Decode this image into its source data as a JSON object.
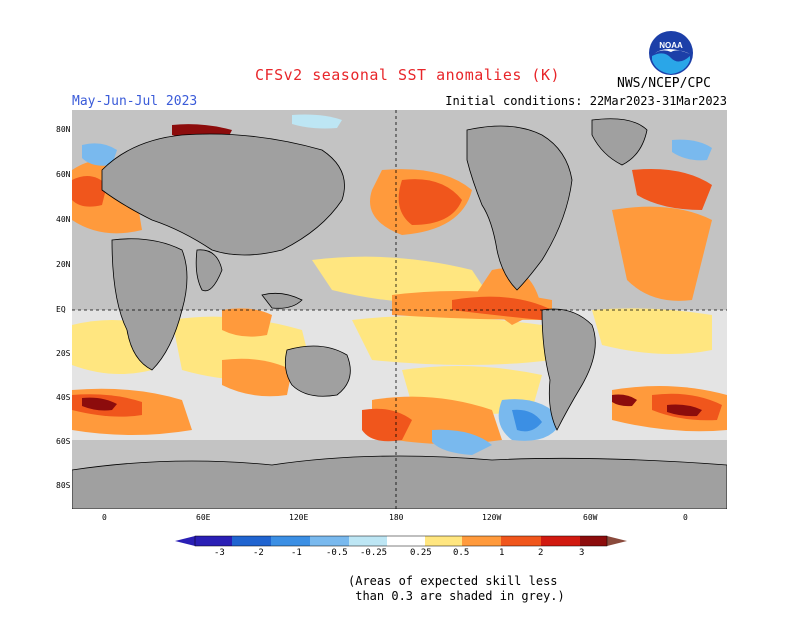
{
  "title": "CFSv2 seasonal SST anomalies (K)",
  "season": "May-Jun-Jul 2023",
  "initial_conditions": "Initial conditions: 22Mar2023-31Mar2023",
  "agency": "NWS/NCEP/CPC",
  "logo_text": "NOAA",
  "lat_labels": [
    "80N",
    "60N",
    "40N",
    "20N",
    "EQ",
    "20S",
    "40S",
    "60S",
    "80S"
  ],
  "lon_labels": [
    "0",
    "60E",
    "120E",
    "180",
    "120W",
    "60W",
    "0"
  ],
  "colorbar": {
    "ticks": [
      "-3",
      "-2",
      "-1",
      "-0.5",
      "-0.25",
      "0.25",
      "0.5",
      "1",
      "2",
      "3"
    ],
    "colors": [
      "#2a1fb5",
      "#2064d0",
      "#3b8fe4",
      "#79b9ee",
      "#bde6f4",
      "#ffffff",
      "#ffe680",
      "#ff9a3c",
      "#f0561c",
      "#d11a10",
      "#8c0c0c",
      "#8a4a3c"
    ]
  },
  "footnote": "(Areas of expected skill less\n than 0.3 are shaded in grey.)",
  "colors": {
    "ocean_grey": "#c3c3c3",
    "land": "#a0a0a0",
    "title_red": "#e8262a",
    "season_blue": "#3a5bd9"
  }
}
